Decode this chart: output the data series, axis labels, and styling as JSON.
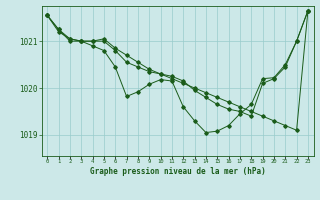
{
  "background_color": "#cce8e8",
  "plot_bg_color": "#cce8e8",
  "line_color": "#1a5c1a",
  "grid_color": "#99cccc",
  "title": "Graphe pression niveau de la mer (hPa)",
  "xlabel_ticks": [
    0,
    1,
    2,
    3,
    4,
    5,
    6,
    7,
    8,
    9,
    10,
    11,
    12,
    13,
    14,
    15,
    16,
    17,
    18,
    19,
    20,
    21,
    22,
    23
  ],
  "ylim": [
    1018.55,
    1021.75
  ],
  "yticks": [
    1019,
    1020,
    1021
  ],
  "series": [
    [
      1021.55,
      1021.25,
      1021.0,
      1021.0,
      1021.0,
      1021.05,
      1020.85,
      1020.7,
      1020.55,
      1020.4,
      1020.3,
      1020.2,
      1020.1,
      1020.0,
      1019.9,
      1019.8,
      1019.7,
      1019.6,
      1019.5,
      1019.4,
      1019.3,
      1019.2,
      1019.1,
      1021.65
    ],
    [
      1021.55,
      1021.25,
      1021.05,
      1021.0,
      1021.0,
      1021.0,
      1020.8,
      1020.55,
      1020.45,
      1020.35,
      1020.3,
      1020.25,
      1020.15,
      1019.95,
      1019.8,
      1019.65,
      1019.55,
      1019.5,
      1019.4,
      1020.1,
      1020.2,
      1020.45,
      1021.0,
      1021.65
    ],
    [
      1021.55,
      1021.2,
      1021.05,
      1021.0,
      1020.9,
      1020.8,
      1020.45,
      1019.82,
      1019.92,
      1020.08,
      1020.18,
      1020.15,
      1019.6,
      1019.3,
      1019.05,
      1019.08,
      1019.2,
      1019.45,
      1019.65,
      1020.2,
      1020.22,
      1020.5,
      1021.0,
      1021.65
    ]
  ]
}
